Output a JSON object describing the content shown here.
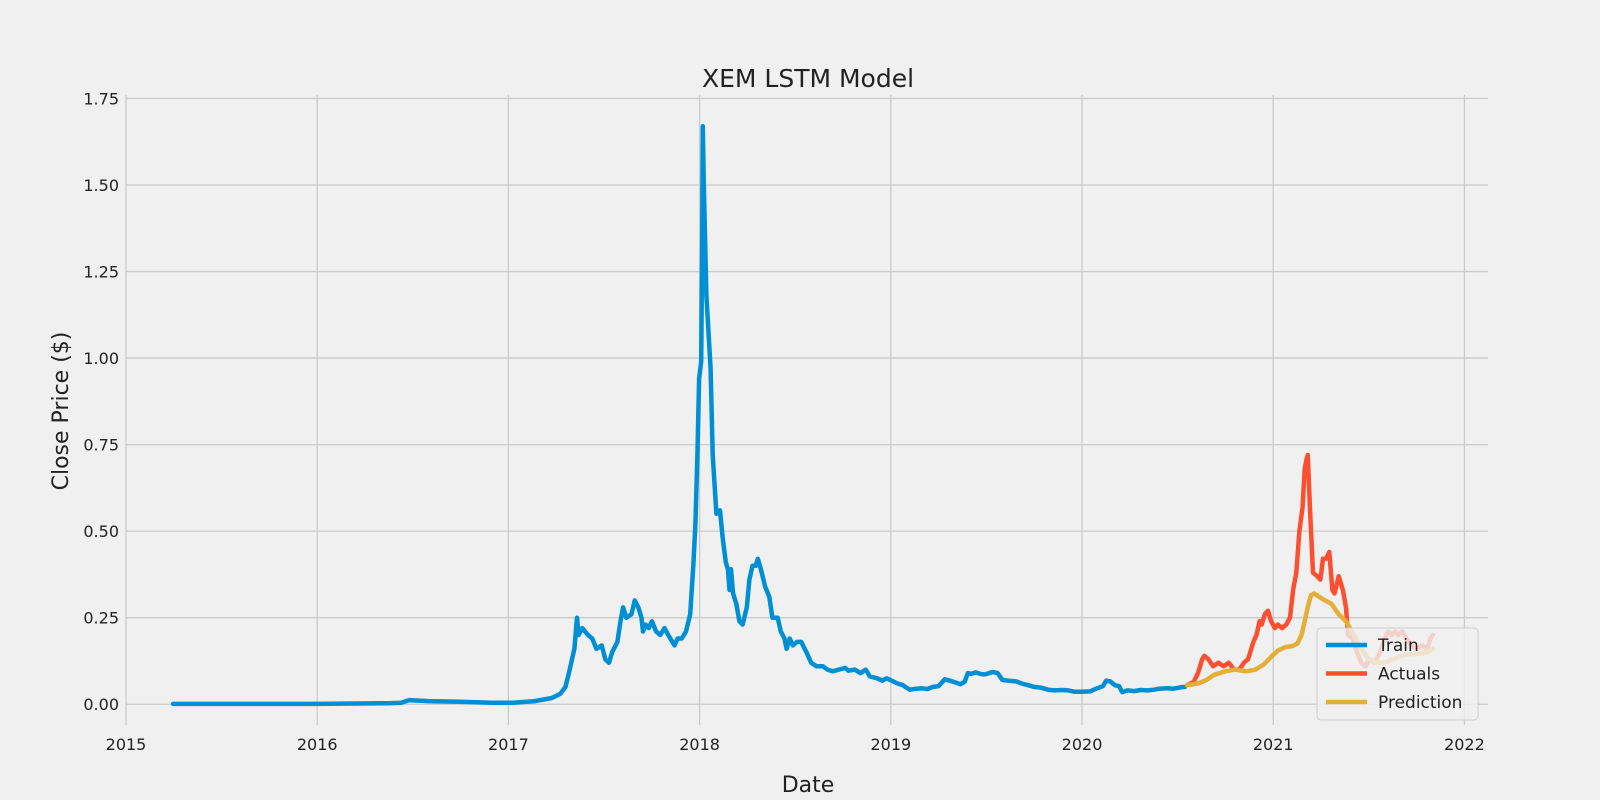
{
  "chart_data": {
    "type": "line",
    "title": "XEM LSTM Model",
    "xlabel": "Date",
    "ylabel": "Close Price ($)",
    "x_ticks": [
      "2015",
      "2016",
      "2017",
      "2018",
      "2019",
      "2020",
      "2021",
      "2022"
    ],
    "y_ticks": [
      "0.00",
      "0.25",
      "0.50",
      "0.75",
      "1.00",
      "1.25",
      "1.50",
      "1.75"
    ],
    "xlim": [
      "2015-01-01",
      "2022-02-15"
    ],
    "ylim": [
      -0.06,
      1.76
    ],
    "grid": true,
    "legend_position": "lower-right",
    "series": [
      {
        "name": "Train",
        "color": "#008fd5",
        "points": [
          [
            "2015-04-01",
            0.001
          ],
          [
            "2015-08-01",
            0.001
          ],
          [
            "2016-01-01",
            0.001
          ],
          [
            "2016-05-15",
            0.003
          ],
          [
            "2016-06-10",
            0.004
          ],
          [
            "2016-06-25",
            0.012
          ],
          [
            "2016-08-01",
            0.009
          ],
          [
            "2016-10-01",
            0.007
          ],
          [
            "2016-12-01",
            0.004
          ],
          [
            "2017-01-10",
            0.004
          ],
          [
            "2017-02-20",
            0.009
          ],
          [
            "2017-03-25",
            0.018
          ],
          [
            "2017-04-10",
            0.03
          ],
          [
            "2017-04-20",
            0.05
          ],
          [
            "2017-04-28",
            0.1
          ],
          [
            "2017-05-07",
            0.16
          ],
          [
            "2017-05-12",
            0.25
          ],
          [
            "2017-05-15",
            0.2
          ],
          [
            "2017-05-22",
            0.22
          ],
          [
            "2017-06-02",
            0.2
          ],
          [
            "2017-06-10",
            0.19
          ],
          [
            "2017-06-18",
            0.16
          ],
          [
            "2017-06-28",
            0.17
          ],
          [
            "2017-07-05",
            0.13
          ],
          [
            "2017-07-12",
            0.12
          ],
          [
            "2017-07-18",
            0.15
          ],
          [
            "2017-07-28",
            0.18
          ],
          [
            "2017-08-03",
            0.24
          ],
          [
            "2017-08-08",
            0.28
          ],
          [
            "2017-08-14",
            0.25
          ],
          [
            "2017-08-24",
            0.26
          ],
          [
            "2017-08-30",
            0.3
          ],
          [
            "2017-09-06",
            0.28
          ],
          [
            "2017-09-12",
            0.25
          ],
          [
            "2017-09-15",
            0.21
          ],
          [
            "2017-09-20",
            0.23
          ],
          [
            "2017-09-26",
            0.22
          ],
          [
            "2017-10-02",
            0.24
          ],
          [
            "2017-10-10",
            0.21
          ],
          [
            "2017-10-18",
            0.2
          ],
          [
            "2017-10-26",
            0.22
          ],
          [
            "2017-11-02",
            0.2
          ],
          [
            "2017-11-10",
            0.18
          ],
          [
            "2017-11-14",
            0.17
          ],
          [
            "2017-11-20",
            0.19
          ],
          [
            "2017-11-28",
            0.19
          ],
          [
            "2017-12-06",
            0.21
          ],
          [
            "2017-12-14",
            0.26
          ],
          [
            "2017-12-20",
            0.4
          ],
          [
            "2017-12-24",
            0.52
          ],
          [
            "2017-12-28",
            0.73
          ],
          [
            "2017-12-31",
            0.94
          ],
          [
            "2018-01-04",
            0.99
          ],
          [
            "2018-01-06",
            1.35
          ],
          [
            "2018-01-07",
            1.67
          ],
          [
            "2018-01-09",
            1.5
          ],
          [
            "2018-01-14",
            1.18
          ],
          [
            "2018-01-22",
            0.97
          ],
          [
            "2018-01-26",
            0.72
          ],
          [
            "2018-02-02",
            0.55
          ],
          [
            "2018-02-09",
            0.56
          ],
          [
            "2018-02-14",
            0.48
          ],
          [
            "2018-02-20",
            0.41
          ],
          [
            "2018-02-24",
            0.39
          ],
          [
            "2018-02-27",
            0.33
          ],
          [
            "2018-03-02",
            0.39
          ],
          [
            "2018-03-06",
            0.32
          ],
          [
            "2018-03-12",
            0.29
          ],
          [
            "2018-03-18",
            0.24
          ],
          [
            "2018-03-24",
            0.23
          ],
          [
            "2018-04-01",
            0.28
          ],
          [
            "2018-04-06",
            0.36
          ],
          [
            "2018-04-12",
            0.4
          ],
          [
            "2018-04-18",
            0.4
          ],
          [
            "2018-04-22",
            0.42
          ],
          [
            "2018-04-28",
            0.39
          ],
          [
            "2018-05-06",
            0.34
          ],
          [
            "2018-05-14",
            0.31
          ],
          [
            "2018-05-20",
            0.25
          ],
          [
            "2018-05-30",
            0.25
          ],
          [
            "2018-06-05",
            0.21
          ],
          [
            "2018-06-12",
            0.19
          ],
          [
            "2018-06-16",
            0.16
          ],
          [
            "2018-06-22",
            0.19
          ],
          [
            "2018-06-28",
            0.17
          ],
          [
            "2018-07-06",
            0.18
          ],
          [
            "2018-07-14",
            0.18
          ],
          [
            "2018-07-24",
            0.15
          ],
          [
            "2018-08-02",
            0.12
          ],
          [
            "2018-08-12",
            0.11
          ],
          [
            "2018-08-24",
            0.11
          ],
          [
            "2018-09-02",
            0.1
          ],
          [
            "2018-09-12",
            0.095
          ],
          [
            "2018-09-24",
            0.1
          ],
          [
            "2018-10-06",
            0.105
          ],
          [
            "2018-10-12",
            0.097
          ],
          [
            "2018-10-24",
            0.1
          ],
          [
            "2018-11-04",
            0.09
          ],
          [
            "2018-11-14",
            0.1
          ],
          [
            "2018-11-22",
            0.08
          ],
          [
            "2018-12-06",
            0.075
          ],
          [
            "2018-12-16",
            0.068
          ],
          [
            "2018-12-24",
            0.075
          ],
          [
            "2019-01-04",
            0.067
          ],
          [
            "2019-01-14",
            0.06
          ],
          [
            "2019-01-24",
            0.055
          ],
          [
            "2019-02-06",
            0.042
          ],
          [
            "2019-02-18",
            0.045
          ],
          [
            "2019-03-02",
            0.046
          ],
          [
            "2019-03-12",
            0.044
          ],
          [
            "2019-03-22",
            0.05
          ],
          [
            "2019-04-02",
            0.052
          ],
          [
            "2019-04-14",
            0.072
          ],
          [
            "2019-04-24",
            0.068
          ],
          [
            "2019-05-04",
            0.063
          ],
          [
            "2019-05-14",
            0.058
          ],
          [
            "2019-05-22",
            0.065
          ],
          [
            "2019-05-28",
            0.09
          ],
          [
            "2019-06-04",
            0.088
          ],
          [
            "2019-06-12",
            0.092
          ],
          [
            "2019-06-20",
            0.088
          ],
          [
            "2019-06-28",
            0.086
          ],
          [
            "2019-07-06",
            0.089
          ],
          [
            "2019-07-14",
            0.093
          ],
          [
            "2019-07-24",
            0.09
          ],
          [
            "2019-08-02",
            0.07
          ],
          [
            "2019-08-14",
            0.068
          ],
          [
            "2019-08-28",
            0.066
          ],
          [
            "2019-09-08",
            0.06
          ],
          [
            "2019-09-20",
            0.055
          ],
          [
            "2019-10-02",
            0.05
          ],
          [
            "2019-10-14",
            0.048
          ],
          [
            "2019-10-28",
            0.042
          ],
          [
            "2019-11-10",
            0.04
          ],
          [
            "2019-11-24",
            0.041
          ],
          [
            "2019-12-06",
            0.04
          ],
          [
            "2019-12-18",
            0.036
          ],
          [
            "2020-01-01",
            0.036
          ],
          [
            "2020-01-16",
            0.037
          ],
          [
            "2020-01-28",
            0.045
          ],
          [
            "2020-02-10",
            0.052
          ],
          [
            "2020-02-16",
            0.068
          ],
          [
            "2020-02-24",
            0.066
          ],
          [
            "2020-03-04",
            0.055
          ],
          [
            "2020-03-12",
            0.052
          ],
          [
            "2020-03-18",
            0.035
          ],
          [
            "2020-03-28",
            0.04
          ],
          [
            "2020-04-10",
            0.038
          ],
          [
            "2020-04-22",
            0.041
          ],
          [
            "2020-05-06",
            0.04
          ],
          [
            "2020-05-18",
            0.042
          ],
          [
            "2020-05-28",
            0.045
          ],
          [
            "2020-06-10",
            0.046
          ],
          [
            "2020-06-24",
            0.045
          ],
          [
            "2020-07-08",
            0.049
          ],
          [
            "2020-07-16",
            0.05
          ]
        ]
      },
      {
        "name": "Actuals",
        "color": "#fc4f30",
        "points": [
          [
            "2020-07-20",
            0.055
          ],
          [
            "2020-08-02",
            0.065
          ],
          [
            "2020-08-10",
            0.09
          ],
          [
            "2020-08-18",
            0.13
          ],
          [
            "2020-08-22",
            0.14
          ],
          [
            "2020-08-30",
            0.13
          ],
          [
            "2020-09-08",
            0.11
          ],
          [
            "2020-09-18",
            0.12
          ],
          [
            "2020-09-28",
            0.11
          ],
          [
            "2020-10-08",
            0.12
          ],
          [
            "2020-10-18",
            0.1
          ],
          [
            "2020-10-28",
            0.1
          ],
          [
            "2020-11-06",
            0.12
          ],
          [
            "2020-11-14",
            0.13
          ],
          [
            "2020-11-24",
            0.18
          ],
          [
            "2020-11-30",
            0.2
          ],
          [
            "2020-12-06",
            0.24
          ],
          [
            "2020-12-10",
            0.23
          ],
          [
            "2020-12-16",
            0.26
          ],
          [
            "2020-12-22",
            0.27
          ],
          [
            "2020-12-28",
            0.24
          ],
          [
            "2021-01-04",
            0.22
          ],
          [
            "2021-01-10",
            0.23
          ],
          [
            "2021-01-18",
            0.22
          ],
          [
            "2021-01-26",
            0.23
          ],
          [
            "2021-02-02",
            0.25
          ],
          [
            "2021-02-08",
            0.33
          ],
          [
            "2021-02-14",
            0.38
          ],
          [
            "2021-02-20",
            0.5
          ],
          [
            "2021-02-26",
            0.57
          ],
          [
            "2021-03-02",
            0.68
          ],
          [
            "2021-03-06",
            0.71
          ],
          [
            "2021-03-08",
            0.72
          ],
          [
            "2021-03-12",
            0.57
          ],
          [
            "2021-03-18",
            0.38
          ],
          [
            "2021-03-26",
            0.37
          ],
          [
            "2021-04-01",
            0.36
          ],
          [
            "2021-04-06",
            0.42
          ],
          [
            "2021-04-12",
            0.42
          ],
          [
            "2021-04-18",
            0.44
          ],
          [
            "2021-04-24",
            0.33
          ],
          [
            "2021-04-28",
            0.32
          ],
          [
            "2021-05-06",
            0.37
          ],
          [
            "2021-05-14",
            0.33
          ],
          [
            "2021-05-20",
            0.28
          ],
          [
            "2021-05-24",
            0.2
          ],
          [
            "2021-06-02",
            0.19
          ],
          [
            "2021-06-10",
            0.15
          ],
          [
            "2021-06-18",
            0.12
          ],
          [
            "2021-06-26",
            0.11
          ],
          [
            "2021-07-04",
            0.13
          ],
          [
            "2021-07-14",
            0.12
          ],
          [
            "2021-07-24",
            0.15
          ],
          [
            "2021-08-02",
            0.19
          ],
          [
            "2021-08-08",
            0.21
          ],
          [
            "2021-08-16",
            0.2
          ],
          [
            "2021-08-22",
            0.21
          ],
          [
            "2021-08-28",
            0.2
          ],
          [
            "2021-09-04",
            0.21
          ],
          [
            "2021-09-12",
            0.19
          ],
          [
            "2021-09-22",
            0.17
          ],
          [
            "2021-10-02",
            0.16
          ],
          [
            "2021-10-12",
            0.17
          ],
          [
            "2021-10-22",
            0.16
          ],
          [
            "2021-10-28",
            0.19
          ],
          [
            "2021-11-02",
            0.2
          ]
        ]
      },
      {
        "name": "Prediction",
        "color": "#e5ae38",
        "points": [
          [
            "2020-07-20",
            0.055
          ],
          [
            "2020-08-10",
            0.06
          ],
          [
            "2020-08-26",
            0.07
          ],
          [
            "2020-09-10",
            0.085
          ],
          [
            "2020-10-01",
            0.095
          ],
          [
            "2020-10-20",
            0.1
          ],
          [
            "2020-11-10",
            0.095
          ],
          [
            "2020-11-28",
            0.1
          ],
          [
            "2020-12-14",
            0.115
          ],
          [
            "2020-12-30",
            0.14
          ],
          [
            "2021-01-10",
            0.155
          ],
          [
            "2021-01-24",
            0.165
          ],
          [
            "2021-02-06",
            0.168
          ],
          [
            "2021-02-16",
            0.175
          ],
          [
            "2021-02-24",
            0.2
          ],
          [
            "2021-03-02",
            0.24
          ],
          [
            "2021-03-08",
            0.28
          ],
          [
            "2021-03-14",
            0.315
          ],
          [
            "2021-03-20",
            0.32
          ],
          [
            "2021-03-30",
            0.31
          ],
          [
            "2021-04-10",
            0.3
          ],
          [
            "2021-04-22",
            0.29
          ],
          [
            "2021-05-06",
            0.26
          ],
          [
            "2021-05-20",
            0.24
          ],
          [
            "2021-06-04",
            0.2
          ],
          [
            "2021-06-18",
            0.16
          ],
          [
            "2021-07-02",
            0.13
          ],
          [
            "2021-07-18",
            0.12
          ],
          [
            "2021-08-02",
            0.12
          ],
          [
            "2021-08-18",
            0.13
          ],
          [
            "2021-09-02",
            0.14
          ],
          [
            "2021-09-20",
            0.145
          ],
          [
            "2021-10-06",
            0.145
          ],
          [
            "2021-10-22",
            0.15
          ],
          [
            "2021-11-02",
            0.16
          ]
        ]
      }
    ]
  }
}
